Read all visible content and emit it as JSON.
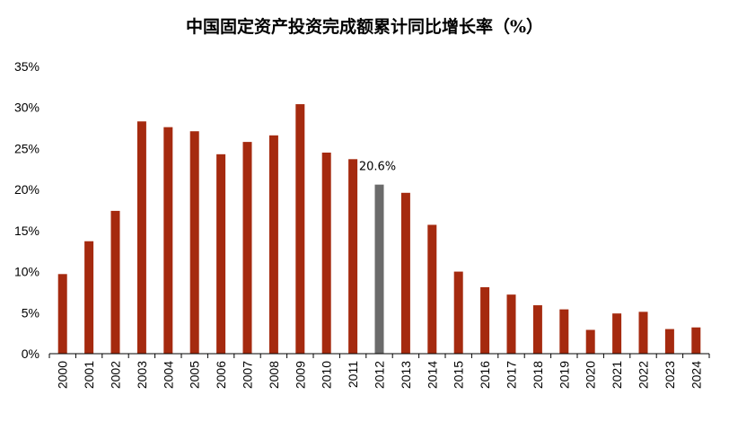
{
  "chart_data": {
    "type": "bar",
    "title": "中国固定资产投资完成额累计同比增长率（%）",
    "xlabel": "",
    "ylabel": "",
    "ylim": [
      0,
      35
    ],
    "yticks": [
      "0%",
      "5%",
      "10%",
      "15%",
      "20%",
      "25%",
      "30%",
      "35%"
    ],
    "ytick_values": [
      0,
      5,
      10,
      15,
      20,
      25,
      30,
      35
    ],
    "grid": false,
    "categories": [
      "2000",
      "2001",
      "2002",
      "2003",
      "2004",
      "2005",
      "2006",
      "2007",
      "2008",
      "2009",
      "2010",
      "2011",
      "2012",
      "2013",
      "2014",
      "2015",
      "2016",
      "2017",
      "2018",
      "2019",
      "2020",
      "2021",
      "2022",
      "2023",
      "2024"
    ],
    "values": [
      9.7,
      13.7,
      17.4,
      28.3,
      27.6,
      27.1,
      24.3,
      25.8,
      26.6,
      30.4,
      24.5,
      23.7,
      20.6,
      19.6,
      15.7,
      10.0,
      8.1,
      7.2,
      5.9,
      5.4,
      2.9,
      4.9,
      5.1,
      3.0,
      3.2
    ],
    "highlight_index": 12,
    "annotation": "20.6%",
    "colors": {
      "bar": "#A52A0F",
      "highlight": "#6B6B6B",
      "axis": "#000000"
    }
  }
}
